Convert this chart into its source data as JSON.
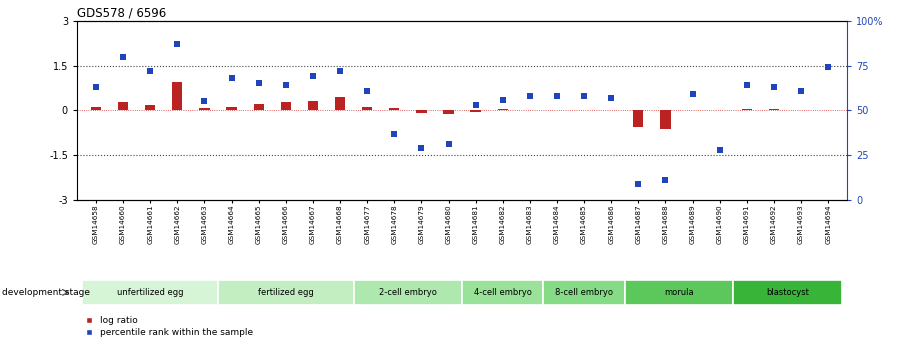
{
  "title": "GDS578 / 6596",
  "samples": [
    "GSM14658",
    "GSM14660",
    "GSM14661",
    "GSM14662",
    "GSM14663",
    "GSM14664",
    "GSM14665",
    "GSM14666",
    "GSM14667",
    "GSM14668",
    "GSM14677",
    "GSM14678",
    "GSM14679",
    "GSM14680",
    "GSM14681",
    "GSM14682",
    "GSM14683",
    "GSM14684",
    "GSM14685",
    "GSM14686",
    "GSM14687",
    "GSM14688",
    "GSM14689",
    "GSM14690",
    "GSM14691",
    "GSM14692",
    "GSM14693",
    "GSM14694"
  ],
  "log_ratio": [
    0.1,
    0.28,
    0.18,
    0.95,
    0.08,
    0.12,
    0.22,
    0.28,
    0.32,
    0.45,
    0.12,
    0.08,
    -0.08,
    -0.13,
    -0.04,
    0.06,
    0.03,
    0.01,
    0.0,
    0.0,
    -0.55,
    -0.62,
    0.0,
    0.0,
    0.04,
    0.04,
    0.0,
    0.02
  ],
  "percentile_rank": [
    63,
    80,
    72,
    87,
    55,
    68,
    65,
    64,
    69,
    72,
    61,
    37,
    29,
    31,
    53,
    56,
    58,
    58,
    58,
    57,
    9,
    11,
    59,
    28,
    64,
    63,
    61,
    74
  ],
  "stages": [
    {
      "label": "unfertilized egg",
      "start": 0,
      "end": 5
    },
    {
      "label": "fertilized egg",
      "start": 5,
      "end": 10
    },
    {
      "label": "2-cell embryo",
      "start": 10,
      "end": 14
    },
    {
      "label": "4-cell embryo",
      "start": 14,
      "end": 17
    },
    {
      "label": "8-cell embryo",
      "start": 17,
      "end": 20
    },
    {
      "label": "morula",
      "start": 20,
      "end": 24
    },
    {
      "label": "blastocyst",
      "start": 24,
      "end": 28
    }
  ],
  "stage_colors": [
    "#d6f5d6",
    "#c2eec2",
    "#aee8ae",
    "#9ae29a",
    "#86dc86",
    "#5cc85c",
    "#38b438"
  ],
  "bar_color": "#bb2222",
  "dot_color": "#2244bb",
  "ylim": [
    -3,
    3
  ],
  "yticks_left": [
    -3,
    -1.5,
    0,
    1.5,
    3
  ],
  "yticks_right": [
    0,
    25,
    50,
    75,
    100
  ],
  "hlines": [
    1.5,
    -1.5
  ],
  "legend_items": [
    "log ratio",
    "percentile rank within the sample"
  ]
}
